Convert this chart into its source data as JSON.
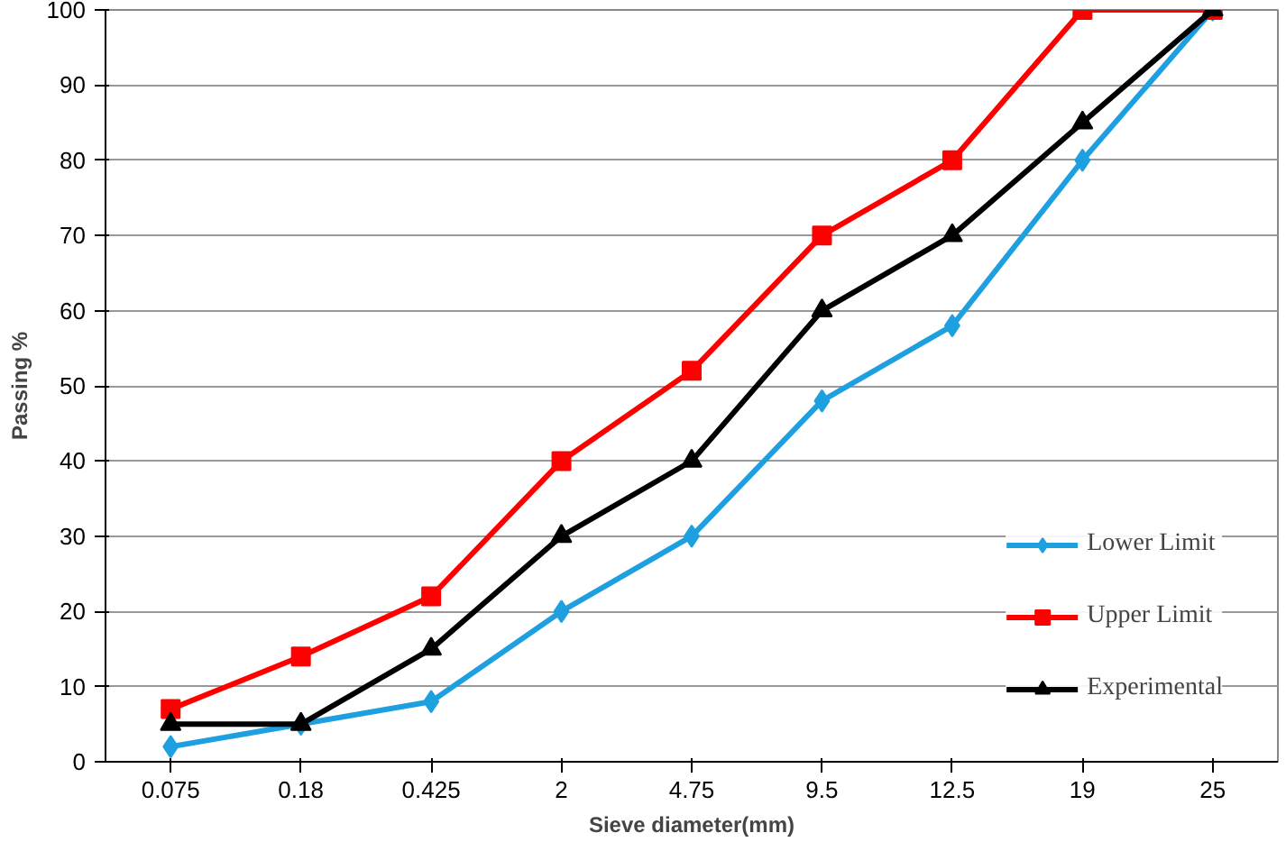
{
  "chart_data": {
    "type": "line",
    "xlabel": "Sieve diameter(mm)",
    "ylabel": "Passing %",
    "categories": [
      "0.075",
      "0.18",
      "0.425",
      "2",
      "4.75",
      "9.5",
      "12.5",
      "19",
      "25"
    ],
    "ylim": [
      0,
      100
    ],
    "yticks": [
      0,
      10,
      20,
      30,
      40,
      50,
      60,
      70,
      80,
      90,
      100
    ],
    "grid": "y",
    "legend": "right",
    "line_style": "solid",
    "series": [
      {
        "name": "Lower Limit",
        "color": "#1ea0e0",
        "marker": "diamond",
        "values": [
          2,
          5,
          8,
          20,
          30,
          48,
          58,
          80,
          100
        ]
      },
      {
        "name": "Upper Limit",
        "color": "#ff0000",
        "marker": "square",
        "values": [
          7,
          14,
          22,
          40,
          52,
          70,
          80,
          100,
          100
        ]
      },
      {
        "name": "Experimental",
        "color": "#000000",
        "marker": "triangle",
        "values": [
          5,
          5,
          15,
          30,
          40,
          60,
          70,
          85,
          100
        ]
      }
    ]
  }
}
